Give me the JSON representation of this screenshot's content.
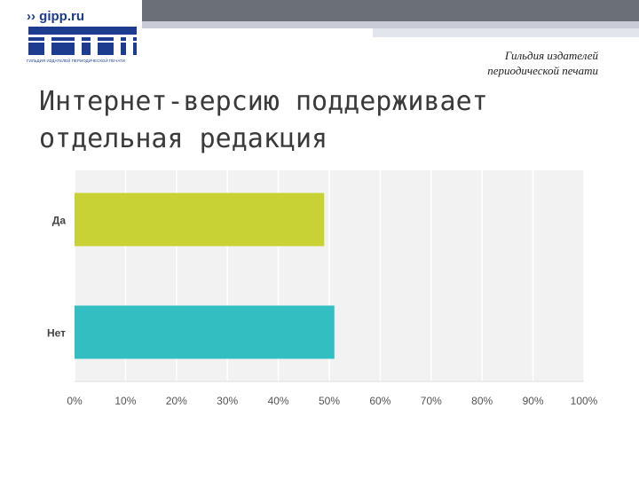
{
  "logo": {
    "site": "›› gipp.ru",
    "caption": "ГИЛЬДИЯ ИЗДАТЕЛЕЙ ПЕРИОДИЧЕСКОЙ ПЕЧАТИ"
  },
  "org_caption": {
    "line1": "Гильдия издателей",
    "line2": "периодической печати"
  },
  "title": {
    "line1": "Интернет-версию поддерживает",
    "line2": "отдельная редакция"
  },
  "colors": {
    "bar_yes": "#c8d235",
    "bar_no": "#33bfc1",
    "plot_bg": "#f2f2f2",
    "grid": "#ffffff",
    "logo_blue": "#1d3b8f"
  },
  "chart_data": {
    "type": "bar",
    "orientation": "horizontal",
    "categories": [
      "Да",
      "Нет"
    ],
    "values": [
      49,
      51
    ],
    "colors": [
      "#c8d235",
      "#33bfc1"
    ],
    "xlim": [
      0,
      100
    ],
    "x_ticks": [
      "0%",
      "10%",
      "20%",
      "30%",
      "40%",
      "50%",
      "60%",
      "70%",
      "80%",
      "90%",
      "100%"
    ],
    "grid": true,
    "title": "",
    "xlabel": "",
    "ylabel": ""
  }
}
